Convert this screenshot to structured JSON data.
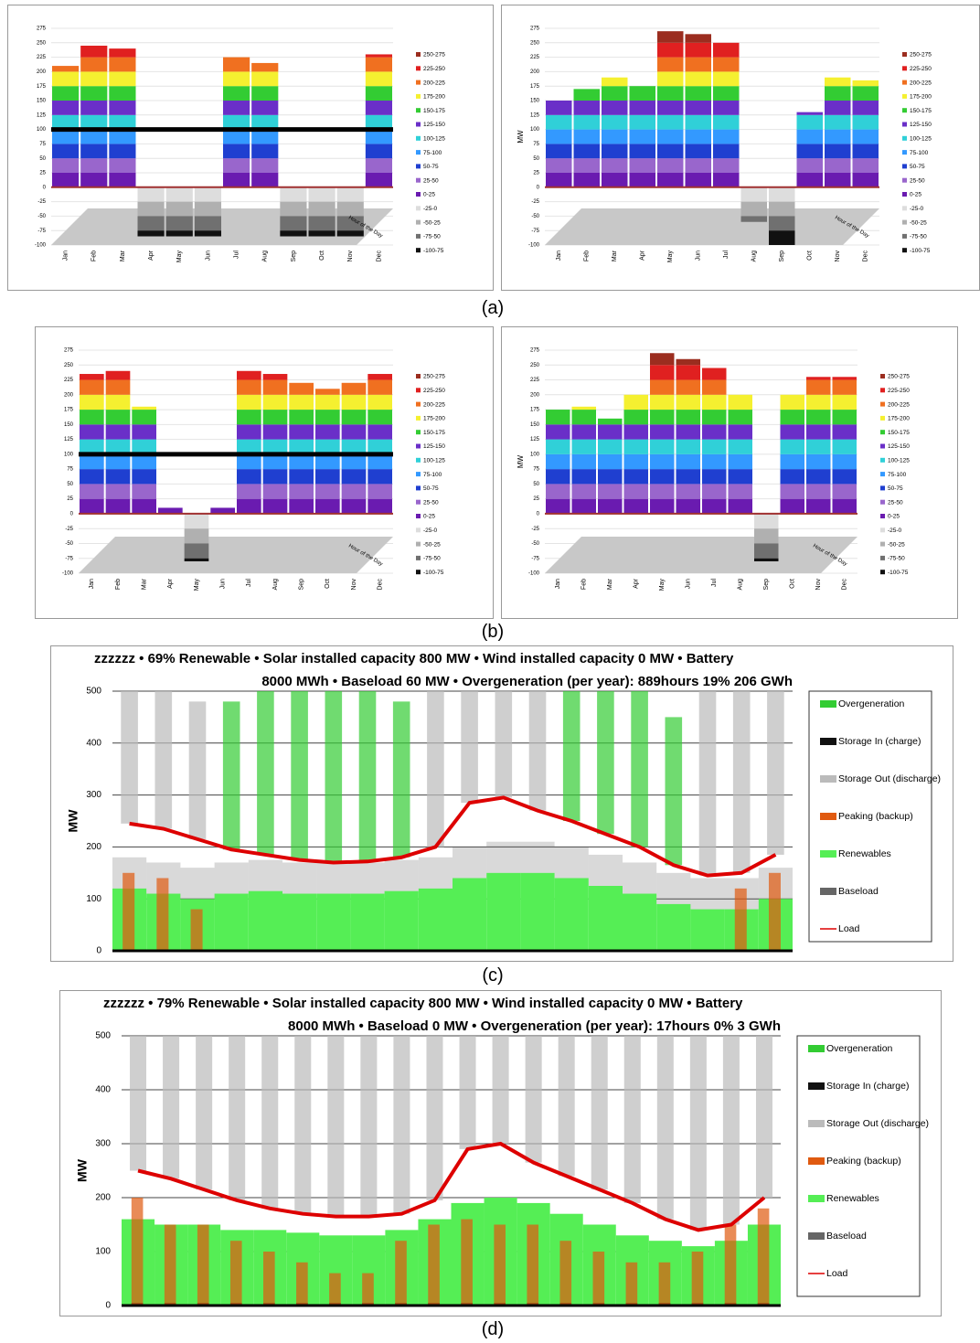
{
  "captions": [
    "(a)",
    "(b)",
    "(c)",
    "(d)"
  ],
  "chart_data": [
    {
      "type": "surface",
      "x_label": "Hour of the Day",
      "categories": [
        "Jan",
        "Feb",
        "Mar",
        "Apr",
        "May",
        "Jun",
        "Jul",
        "Aug",
        "Sep",
        "Oct",
        "Nov",
        "Dec"
      ],
      "values": [
        210,
        245,
        240,
        -85,
        -85,
        -85,
        225,
        215,
        -85,
        -85,
        -85,
        230
      ],
      "threshold": 100,
      "ylim": [
        -100,
        275
      ],
      "yticks": [
        -100,
        -75,
        -50,
        -25,
        0,
        25,
        50,
        75,
        100,
        125,
        150,
        175,
        200,
        225,
        250,
        275
      ],
      "bands": [
        {
          "label": "250-275",
          "color": "#9b2d1f"
        },
        {
          "label": "225-250",
          "color": "#e02020"
        },
        {
          "label": "200-225",
          "color": "#f07020"
        },
        {
          "label": "175-200",
          "color": "#f5f030"
        },
        {
          "label": "150-175",
          "color": "#33cc33"
        },
        {
          "label": "125-150",
          "color": "#6a2fc8"
        },
        {
          "label": "100-125",
          "color": "#30d0d8"
        },
        {
          "label": "75-100",
          "color": "#3399ff"
        },
        {
          "label": "50-75",
          "color": "#1f3fd0"
        },
        {
          "label": "25-50",
          "color": "#9966cc"
        },
        {
          "label": "0-25",
          "color": "#6a1bb0"
        },
        {
          "label": "-25-0",
          "color": "#dddddd"
        },
        {
          "label": "-50-25",
          "color": "#b0b0b0"
        },
        {
          "label": "-75-50",
          "color": "#707070"
        },
        {
          "label": "-100-75",
          "color": "#111111"
        }
      ]
    },
    {
      "type": "surface",
      "x_label": "Hour of the Day",
      "y_label": "MW",
      "categories": [
        "Jan",
        "Feb",
        "Mar",
        "Apr",
        "May",
        "Jun",
        "Jul",
        "Aug",
        "Sep",
        "Oct",
        "Nov",
        "Dec"
      ],
      "values": [
        150,
        170,
        190,
        175,
        270,
        265,
        250,
        -60,
        -100,
        130,
        190,
        185
      ],
      "ylim": [
        -100,
        275
      ],
      "yticks": [
        -100,
        -75,
        -50,
        -25,
        0,
        25,
        50,
        75,
        100,
        125,
        150,
        175,
        200,
        225,
        250,
        275
      ],
      "bands": [
        {
          "label": "250-275",
          "color": "#9b2d1f"
        },
        {
          "label": "225-250",
          "color": "#e02020"
        },
        {
          "label": "200-225",
          "color": "#f07020"
        },
        {
          "label": "175-200",
          "color": "#f5f030"
        },
        {
          "label": "150-175",
          "color": "#33cc33"
        },
        {
          "label": "125-150",
          "color": "#6a2fc8"
        },
        {
          "label": "100-125",
          "color": "#30d0d8"
        },
        {
          "label": "75-100",
          "color": "#3399ff"
        },
        {
          "label": "50-75",
          "color": "#1f3fd0"
        },
        {
          "label": "25-50",
          "color": "#9966cc"
        },
        {
          "label": "0-25",
          "color": "#6a1bb0"
        },
        {
          "label": "-25-0",
          "color": "#dddddd"
        },
        {
          "label": "-50-25",
          "color": "#b0b0b0"
        },
        {
          "label": "-75-50",
          "color": "#707070"
        },
        {
          "label": "-100-75",
          "color": "#111111"
        }
      ]
    },
    {
      "type": "surface",
      "x_label": "Hour of the Day",
      "categories": [
        "Jan",
        "Feb",
        "Mar",
        "Apr",
        "May",
        "Jun",
        "Jul",
        "Aug",
        "Sep",
        "Oct",
        "Nov",
        "Dec"
      ],
      "values": [
        235,
        240,
        180,
        10,
        -80,
        10,
        240,
        235,
        220,
        210,
        220,
        235
      ],
      "threshold": 100,
      "ylim": [
        -100,
        275
      ],
      "yticks": [
        -100,
        -75,
        -50,
        -25,
        0,
        25,
        50,
        75,
        100,
        125,
        150,
        175,
        200,
        225,
        250,
        275
      ],
      "bands": [
        {
          "label": "250-275",
          "color": "#9b2d1f"
        },
        {
          "label": "225-250",
          "color": "#e02020"
        },
        {
          "label": "200-225",
          "color": "#f07020"
        },
        {
          "label": "175-200",
          "color": "#f5f030"
        },
        {
          "label": "150-175",
          "color": "#33cc33"
        },
        {
          "label": "125-150",
          "color": "#6a2fc8"
        },
        {
          "label": "100-125",
          "color": "#30d0d8"
        },
        {
          "label": "75-100",
          "color": "#3399ff"
        },
        {
          "label": "50-75",
          "color": "#1f3fd0"
        },
        {
          "label": "25-50",
          "color": "#9966cc"
        },
        {
          "label": "0-25",
          "color": "#6a1bb0"
        },
        {
          "label": "-25-0",
          "color": "#dddddd"
        },
        {
          "label": "-50-25",
          "color": "#b0b0b0"
        },
        {
          "label": "-75-50",
          "color": "#707070"
        },
        {
          "label": "-100-75",
          "color": "#111111"
        }
      ]
    },
    {
      "type": "surface",
      "x_label": "Hour of the Day",
      "y_label": "MW",
      "categories": [
        "Jan",
        "Feb",
        "Mar",
        "Apr",
        "May",
        "Jun",
        "Jul",
        "Aug",
        "Sep",
        "Oct",
        "Nov",
        "Dec"
      ],
      "values": [
        175,
        180,
        160,
        200,
        270,
        260,
        245,
        200,
        -80,
        200,
        230,
        230
      ],
      "ylim": [
        -100,
        275
      ],
      "yticks": [
        -100,
        -75,
        -50,
        -25,
        0,
        25,
        50,
        75,
        100,
        125,
        150,
        175,
        200,
        225,
        250,
        275
      ],
      "bands": [
        {
          "label": "250-275",
          "color": "#9b2d1f"
        },
        {
          "label": "225-250",
          "color": "#e02020"
        },
        {
          "label": "200-225",
          "color": "#f07020"
        },
        {
          "label": "175-200",
          "color": "#f5f030"
        },
        {
          "label": "150-175",
          "color": "#33cc33"
        },
        {
          "label": "125-150",
          "color": "#6a2fc8"
        },
        {
          "label": "100-125",
          "color": "#30d0d8"
        },
        {
          "label": "75-100",
          "color": "#3399ff"
        },
        {
          "label": "50-75",
          "color": "#1f3fd0"
        },
        {
          "label": "25-50",
          "color": "#9966cc"
        },
        {
          "label": "0-25",
          "color": "#6a1bb0"
        },
        {
          "label": "-25-0",
          "color": "#dddddd"
        },
        {
          "label": "-50-25",
          "color": "#b0b0b0"
        },
        {
          "label": "-75-50",
          "color": "#707070"
        },
        {
          "label": "-100-75",
          "color": "#111111"
        }
      ]
    },
    {
      "type": "area",
      "title": [
        "zzzzzz  • 69% Renewable  • Solar installed capacity  800 MW  • Wind installed capacity 0 MW  •  Battery",
        "8000 MWh  •   Baseload  60 MW   •   Overgeneration (per year):  889hours   19%   206 GWh"
      ],
      "y_label": "MW",
      "ylim": [
        0,
        500
      ],
      "yticks": [
        0,
        100,
        200,
        300,
        400,
        500
      ],
      "grid": true,
      "series": [
        {
          "name": "Overgeneration",
          "color": "#33cc33",
          "mark": "spike",
          "values": [
            0,
            0,
            0,
            480,
            500,
            500,
            500,
            500,
            480,
            0,
            0,
            0,
            0,
            500,
            500,
            500,
            450,
            0,
            0,
            0
          ]
        },
        {
          "name": "Storage In (charge)",
          "color": "#111111",
          "mark": "bar",
          "values": [
            0,
            0,
            0,
            0,
            0,
            0,
            0,
            0,
            0,
            0,
            0,
            0,
            0,
            0,
            0,
            0,
            0,
            0,
            0,
            0
          ]
        },
        {
          "name": "Storage Out (discharge)",
          "color": "#bbbbbb",
          "mark": "spike",
          "values": [
            500,
            500,
            480,
            0,
            0,
            0,
            0,
            0,
            0,
            500,
            500,
            500,
            500,
            0,
            0,
            0,
            0,
            500,
            500,
            500
          ]
        },
        {
          "name": "Peaking (backup)",
          "color": "#e05a10",
          "mark": "bar",
          "values": [
            150,
            140,
            80,
            0,
            0,
            0,
            0,
            0,
            0,
            0,
            0,
            0,
            0,
            0,
            0,
            0,
            0,
            0,
            120,
            150
          ]
        },
        {
          "name": "Renewables",
          "color": "#55ee55",
          "mark": "area",
          "values": [
            120,
            110,
            100,
            110,
            115,
            110,
            110,
            110,
            115,
            120,
            140,
            150,
            150,
            140,
            125,
            110,
            90,
            80,
            80,
            100
          ]
        },
        {
          "name": "Baseload",
          "color": "#666666",
          "mark": "area",
          "values": [
            60,
            60,
            60,
            60,
            60,
            60,
            60,
            60,
            60,
            60,
            60,
            60,
            60,
            60,
            60,
            60,
            60,
            60,
            60,
            60
          ]
        },
        {
          "name": "Load",
          "color": "#dd0000",
          "mark": "line",
          "values": [
            245,
            235,
            215,
            195,
            185,
            175,
            170,
            172,
            180,
            200,
            285,
            295,
            270,
            250,
            225,
            200,
            165,
            145,
            150,
            185
          ]
        }
      ]
    },
    {
      "type": "area",
      "title": [
        "zzzzzz  • 79% Renewable  • Solar installed capacity  800 MW  • Wind installed capacity 0 MW  •  Battery",
        "8000 MWh  •   Baseload  0 MW   •   Overgeneration (per year):  17hours   0%   3 GWh"
      ],
      "y_label": "MW",
      "ylim": [
        0,
        500
      ],
      "yticks": [
        0,
        100,
        200,
        300,
        400,
        500
      ],
      "grid": true,
      "series": [
        {
          "name": "Overgeneration",
          "color": "#33cc33",
          "mark": "spike",
          "values": [
            0,
            0,
            0,
            0,
            0,
            0,
            0,
            0,
            0,
            0,
            0,
            0,
            0,
            0,
            0,
            0,
            0,
            0,
            0,
            0
          ]
        },
        {
          "name": "Storage In (charge)",
          "color": "#111111",
          "mark": "bar",
          "values": [
            5,
            5,
            5,
            5,
            5,
            5,
            5,
            5,
            5,
            5,
            5,
            5,
            5,
            5,
            5,
            5,
            5,
            5,
            5,
            5
          ]
        },
        {
          "name": "Storage Out (discharge)",
          "color": "#bbbbbb",
          "mark": "spike",
          "values": [
            500,
            500,
            500,
            500,
            500,
            500,
            500,
            500,
            500,
            500,
            500,
            500,
            500,
            500,
            500,
            500,
            500,
            500,
            500,
            500
          ]
        },
        {
          "name": "Peaking (backup)",
          "color": "#e05a10",
          "mark": "bar",
          "values": [
            200,
            150,
            150,
            120,
            100,
            80,
            60,
            60,
            120,
            150,
            160,
            150,
            150,
            120,
            100,
            80,
            80,
            100,
            150,
            180
          ]
        },
        {
          "name": "Renewables",
          "color": "#55ee55",
          "mark": "area",
          "values": [
            160,
            150,
            150,
            140,
            140,
            135,
            130,
            130,
            140,
            160,
            190,
            200,
            190,
            170,
            150,
            130,
            120,
            110,
            120,
            150
          ]
        },
        {
          "name": "Baseload",
          "color": "#666666",
          "mark": "area",
          "values": [
            0,
            0,
            0,
            0,
            0,
            0,
            0,
            0,
            0,
            0,
            0,
            0,
            0,
            0,
            0,
            0,
            0,
            0,
            0,
            0
          ]
        },
        {
          "name": "Load",
          "color": "#dd0000",
          "mark": "line",
          "values": [
            250,
            235,
            215,
            195,
            180,
            170,
            165,
            165,
            170,
            195,
            290,
            300,
            265,
            240,
            215,
            190,
            160,
            140,
            150,
            200
          ]
        }
      ]
    }
  ]
}
